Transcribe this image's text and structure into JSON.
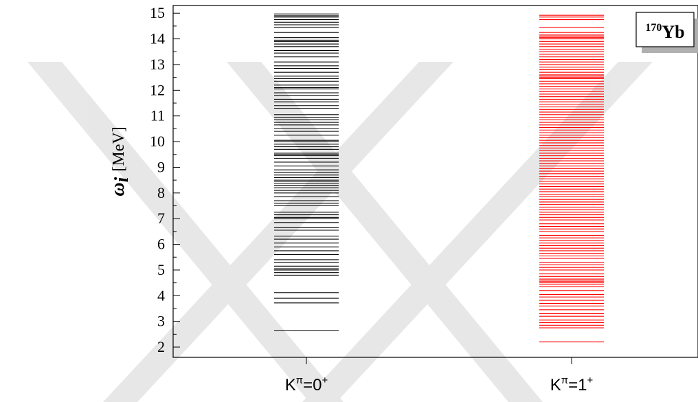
{
  "chart_data": {
    "type": "spectrum",
    "ylabel": {
      "symbol": "ω",
      "subscript": "i",
      "unit": "[MeV]"
    },
    "ylim": [
      1.6,
      15.3
    ],
    "yticks": [
      2,
      3,
      4,
      5,
      6,
      7,
      8,
      9,
      10,
      11,
      12,
      13,
      14,
      15
    ],
    "grid": false,
    "legend": "none",
    "annotation": {
      "mass_number": "170",
      "element": "Yb",
      "position": "top-right"
    },
    "categories": [
      {
        "label": "K",
        "superscript": "π",
        "value": "=0",
        "parity": "+"
      },
      {
        "label": "K",
        "superscript": "π",
        "value": "=1",
        "parity": "+"
      }
    ],
    "series": [
      {
        "color": "#000000",
        "energies": [
          2.65,
          3.72,
          3.9,
          4.12,
          4.8,
          4.9,
          5.0,
          5.05,
          5.15,
          5.3,
          5.4,
          5.6,
          5.75,
          5.9,
          6.05,
          6.2,
          6.32,
          6.55,
          6.65,
          6.85,
          7.0,
          7.05,
          7.15,
          7.25,
          7.5,
          7.6,
          7.7,
          7.85,
          8.0,
          8.1,
          8.2,
          8.3,
          8.38,
          8.45,
          8.5,
          8.6,
          8.7,
          8.8,
          8.9,
          9.05,
          9.2,
          9.35,
          9.45,
          9.5,
          9.55,
          9.7,
          9.8,
          9.9,
          10.0,
          10.05,
          10.25,
          10.4,
          10.5,
          10.65,
          10.75,
          10.85,
          10.95,
          11.05,
          11.3,
          11.4,
          11.55,
          11.65,
          11.8,
          11.9,
          12.05,
          12.1,
          12.2,
          12.35,
          12.45,
          12.55,
          12.7,
          12.85,
          12.95,
          13.1,
          13.3,
          13.45,
          13.55,
          13.7,
          13.8,
          13.9,
          13.95,
          14.05,
          14.25,
          14.45,
          14.55,
          14.65,
          14.75,
          14.85,
          14.9,
          14.97
        ]
      },
      {
        "color": "#ff0000",
        "energies": [
          2.2,
          2.75,
          2.85,
          2.95,
          3.05,
          3.2,
          3.3,
          3.45,
          3.6,
          3.7,
          3.82,
          3.95,
          4.05,
          4.2,
          4.35,
          4.45,
          4.5,
          4.55,
          4.6,
          4.65,
          4.75,
          4.85,
          5.0,
          5.1,
          5.2,
          5.3,
          5.45,
          5.55,
          5.65,
          5.75,
          5.85,
          5.95,
          6.05,
          6.15,
          6.25,
          6.35,
          6.5,
          6.6,
          6.7,
          6.8,
          6.95,
          7.05,
          7.15,
          7.25,
          7.35,
          7.45,
          7.55,
          7.65,
          7.75,
          7.85,
          7.95,
          8.05,
          8.15,
          8.25,
          8.35,
          8.45,
          8.55,
          8.65,
          8.75,
          8.85,
          8.95,
          9.05,
          9.15,
          9.25,
          9.35,
          9.45,
          9.55,
          9.65,
          9.75,
          9.85,
          9.95,
          10.05,
          10.15,
          10.25,
          10.35,
          10.45,
          10.55,
          10.65,
          10.75,
          10.85,
          10.95,
          11.05,
          11.15,
          11.25,
          11.35,
          11.45,
          11.55,
          11.65,
          11.75,
          11.85,
          11.95,
          12.05,
          12.15,
          12.25,
          12.35,
          12.45,
          12.5,
          12.55,
          12.6,
          12.7,
          12.8,
          12.9,
          13.0,
          13.1,
          13.2,
          13.3,
          13.4,
          13.5,
          13.6,
          13.7,
          13.8,
          13.9,
          14.0,
          14.05,
          14.1,
          14.15,
          14.25,
          14.45,
          14.75,
          14.85,
          14.92
        ]
      }
    ]
  }
}
